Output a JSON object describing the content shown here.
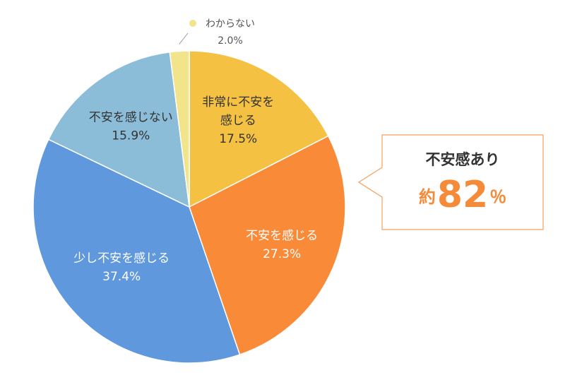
{
  "chart_data": {
    "type": "pie",
    "slices": [
      {
        "label_lines": [
          "非常に不安を",
          "感じる"
        ],
        "value": 17.5,
        "value_text": "17.5%",
        "color": "#f4c142"
      },
      {
        "label_lines": [
          "不安を感じる"
        ],
        "value": 27.3,
        "value_text": "27.3%",
        "color": "#f98a38"
      },
      {
        "label_lines": [
          "少し不安を感じる"
        ],
        "value": 37.4,
        "value_text": "37.4%",
        "color": "#5f98dd"
      },
      {
        "label_lines": [
          "不安を感じない"
        ],
        "value": 15.9,
        "value_text": "15.9%",
        "color": "#8bbcd8"
      },
      {
        "label_lines": [
          "わからない"
        ],
        "value": 2.0,
        "value_text": "2.0%",
        "color": "#f2e48b"
      }
    ],
    "start": "12 o'clock",
    "direction": "clockwise"
  },
  "callout": {
    "title": "不安感あり",
    "prefix": "約",
    "number": "82",
    "unit": "％",
    "border_color": "#f5a060",
    "accent_color": "#f58a38"
  }
}
